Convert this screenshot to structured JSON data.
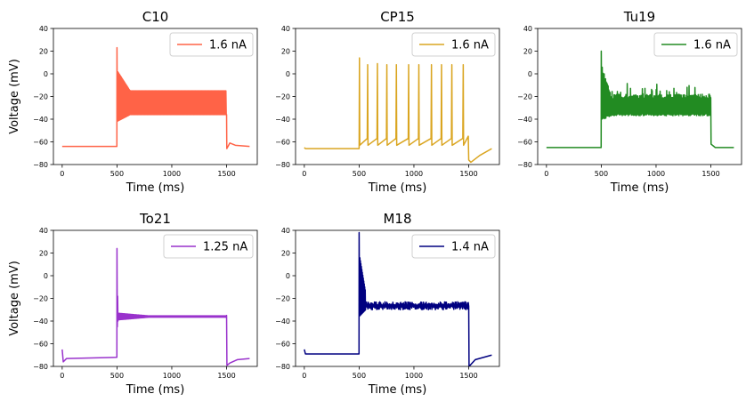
{
  "chart_data": [
    {
      "type": "line",
      "title": "C10",
      "xlabel": "Time (ms)",
      "ylabel": "Voltage (mV)",
      "xlim": [
        -80,
        1780
      ],
      "ylim": [
        -80,
        40
      ],
      "xticks": [
        0,
        500,
        1000,
        1500
      ],
      "yticks": [
        -80,
        -60,
        -40,
        -20,
        0,
        20,
        40
      ],
      "legend_loc": "upper right",
      "series": [
        {
          "name": "1.6 nA",
          "color": "#ff6347",
          "pattern": "dense_band",
          "rest": -64,
          "start_v": -64,
          "stim_on": 500,
          "stim_off": 1500,
          "peak": 23,
          "band_low": -36,
          "band_high": -15,
          "post_min": -66,
          "end_v": -64
        }
      ]
    },
    {
      "type": "line",
      "title": "CP15",
      "xlabel": "Time (ms)",
      "ylabel": "",
      "xlim": [
        -80,
        1780
      ],
      "ylim": [
        -80,
        40
      ],
      "xticks": [
        0,
        500,
        1000,
        1500
      ],
      "yticks": [
        -80,
        -60,
        -40,
        -20,
        0,
        20,
        40
      ],
      "legend_loc": "upper right",
      "series": [
        {
          "name": "1.6 nA",
          "color": "#daa520",
          "pattern": "spikes",
          "rest": -66,
          "start_v": -65,
          "stim_on": 500,
          "stim_off": 1500,
          "spike_times": [
            503,
            578,
            667,
            753,
            840,
            952,
            1045,
            1160,
            1252,
            1346,
            1450
          ],
          "spike_peaks": [
            14,
            8,
            9,
            8,
            8,
            8,
            8,
            8,
            8,
            8,
            8
          ],
          "trough": -63,
          "pre_spike": -57,
          "post_min": -78,
          "end_v": -66
        }
      ]
    },
    {
      "type": "line",
      "title": "Tu19",
      "xlabel": "Time (ms)",
      "ylabel": "",
      "xlim": [
        -80,
        1780
      ],
      "ylim": [
        -80,
        40
      ],
      "xticks": [
        0,
        500,
        1000,
        1500
      ],
      "yticks": [
        -80,
        -60,
        -40,
        -20,
        0,
        20,
        40
      ],
      "legend_loc": "upper right",
      "series": [
        {
          "name": "1.6 nA",
          "color": "#228b22",
          "pattern": "noisy_band",
          "rest": -65,
          "start_v": -65,
          "stim_on": 500,
          "stim_off": 1500,
          "peak": 20,
          "band_low": -35,
          "band_high": -18,
          "post_min": -65,
          "end_v": -65
        }
      ]
    },
    {
      "type": "line",
      "title": "To21",
      "xlabel": "Time (ms)",
      "ylabel": "Voltage (mV)",
      "xlim": [
        -80,
        1780
      ],
      "ylim": [
        -80,
        40
      ],
      "xticks": [
        0,
        500,
        1000,
        1500
      ],
      "yticks": [
        -80,
        -60,
        -40,
        -20,
        0,
        20,
        40
      ],
      "legend_loc": "upper right",
      "series": [
        {
          "name": "1.25 nA",
          "color": "#9932cc",
          "pattern": "plateau",
          "rest": -72,
          "start_v": -65,
          "stim_on": 500,
          "stim_off": 1500,
          "peak": 24,
          "band_low": -38,
          "band_high": -34,
          "post_min": -79,
          "end_v": -73
        }
      ]
    },
    {
      "type": "line",
      "title": "M18",
      "xlabel": "Time (ms)",
      "ylabel": "",
      "xlim": [
        -80,
        1780
      ],
      "ylim": [
        -80,
        40
      ],
      "xticks": [
        0,
        500,
        1000,
        1500
      ],
      "yticks": [
        -80,
        -60,
        -40,
        -20,
        0,
        20,
        40
      ],
      "legend_loc": "upper right",
      "series": [
        {
          "name": "1.4 nA",
          "color": "#000080",
          "pattern": "damped_noise",
          "rest": -69,
          "start_v": -65,
          "stim_on": 500,
          "stim_off": 1500,
          "peak": 38,
          "band_low": -30,
          "band_high": -23,
          "post_min": -80,
          "end_v": -70
        }
      ]
    }
  ]
}
